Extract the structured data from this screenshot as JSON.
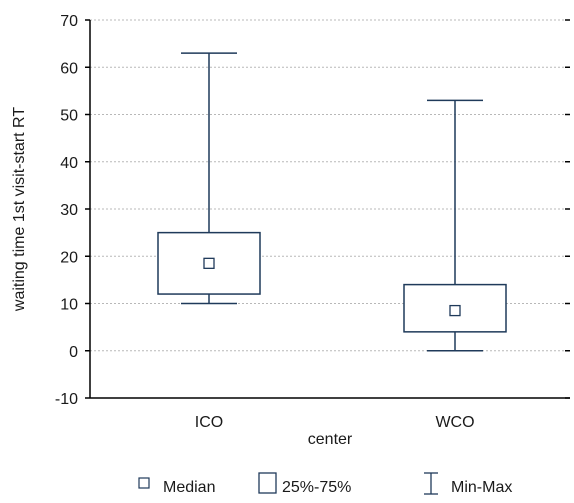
{
  "chart_data": {
    "type": "boxplot",
    "xlabel": "center",
    "ylabel": "waiting time 1st visit-start RT",
    "ylim": [
      -10,
      70
    ],
    "yticks": [
      -10,
      0,
      10,
      20,
      30,
      40,
      50,
      60,
      70
    ],
    "grid": true,
    "categories": [
      "ICO",
      "WCO"
    ],
    "boxes": [
      {
        "category": "ICO",
        "min": 10,
        "q1": 12,
        "median": 18.5,
        "q3": 25,
        "max": 63
      },
      {
        "category": "WCO",
        "min": 0,
        "q1": 4,
        "median": 8.5,
        "q3": 14,
        "max": 53
      }
    ],
    "legend": {
      "position": "bottom",
      "items": [
        {
          "symbol": "median-marker",
          "label": "Median"
        },
        {
          "symbol": "box",
          "label": "25%-75%"
        },
        {
          "symbol": "whisker",
          "label": "Min-Max"
        }
      ]
    },
    "colors": {
      "box_stroke": "#1f3a5a",
      "axis": "#000000",
      "grid": "#b8b8b8"
    }
  }
}
